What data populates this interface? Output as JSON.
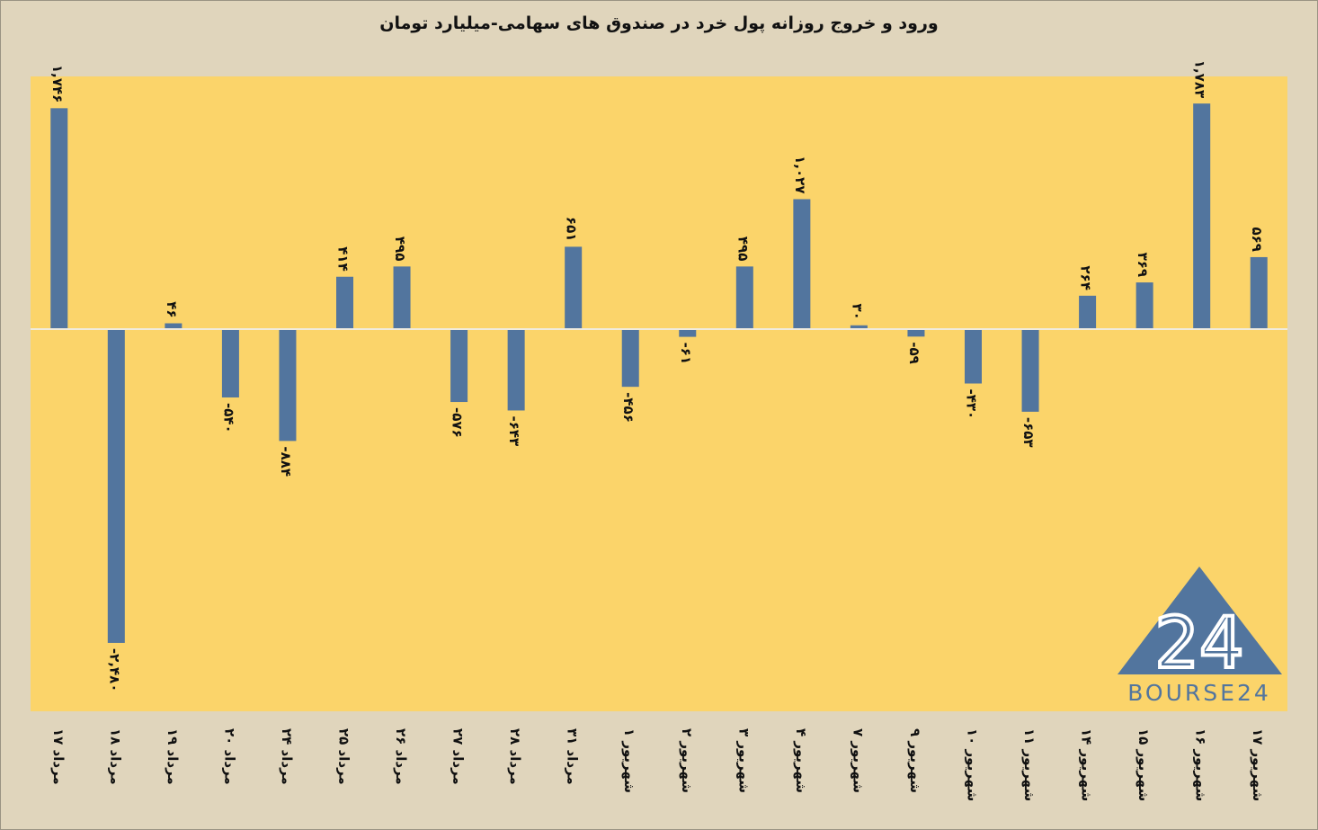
{
  "colors": {
    "background": "#e0d5bc",
    "plot_area": "#fbd46a",
    "bar": "#52759e",
    "zero_line": "#f0ebdd",
    "text": "#111111",
    "logo": "#52759e"
  },
  "logo": {
    "icon": "triangle-24-logo",
    "text": "BOURSE24"
  },
  "chart_data": {
    "type": "bar",
    "title": "ورود و خروج روزانه پول خرد در صندوق های سهامی-میلیارد تومان",
    "categories": [
      "۱۷ مرداد",
      "۱۸ مرداد",
      "۱۹ مرداد",
      "۲۰ مرداد",
      "۲۴ مرداد",
      "۲۵ مرداد",
      "۲۶ مرداد",
      "۲۷ مرداد",
      "۲۸ مرداد",
      "۳۱ مرداد",
      "۱ شهریور",
      "۲ شهریور",
      "۳ شهریور",
      "۴ شهریور",
      "۷ شهریور",
      "۹ شهریور",
      "۱۰ شهریور",
      "۱۱ شهریور",
      "۱۴ شهریور",
      "۱۵ شهریور",
      "۱۶ شهریور",
      "۱۷ شهریور"
    ],
    "values": [
      1746,
      -2480,
      46,
      -540,
      -884,
      414,
      495,
      -576,
      -643,
      651,
      -456,
      -61,
      495,
      1027,
      30,
      -59,
      -430,
      -653,
      264,
      369,
      1783,
      569
    ],
    "data_labels": [
      "۱,۷۴۶",
      "-۲,۴۸۰",
      "۴۶",
      "-۵۴۰",
      "-۸۸۴",
      "۴۱۴",
      "۴۹۵",
      "-۵۷۶",
      "-۶۴۳",
      "۶۵۱",
      "-۴۵۶",
      "-۶۱",
      "۴۹۵",
      "۱,۰۲۷",
      "۳۰",
      "-۵۹",
      "-۴۳۰",
      "-۶۵۳",
      "۲۶۴",
      "۳۶۹",
      "۱,۷۸۳",
      "۵۶۹"
    ],
    "ylim": [
      -3000,
      2000
    ],
    "grid": false,
    "legend": "none"
  }
}
